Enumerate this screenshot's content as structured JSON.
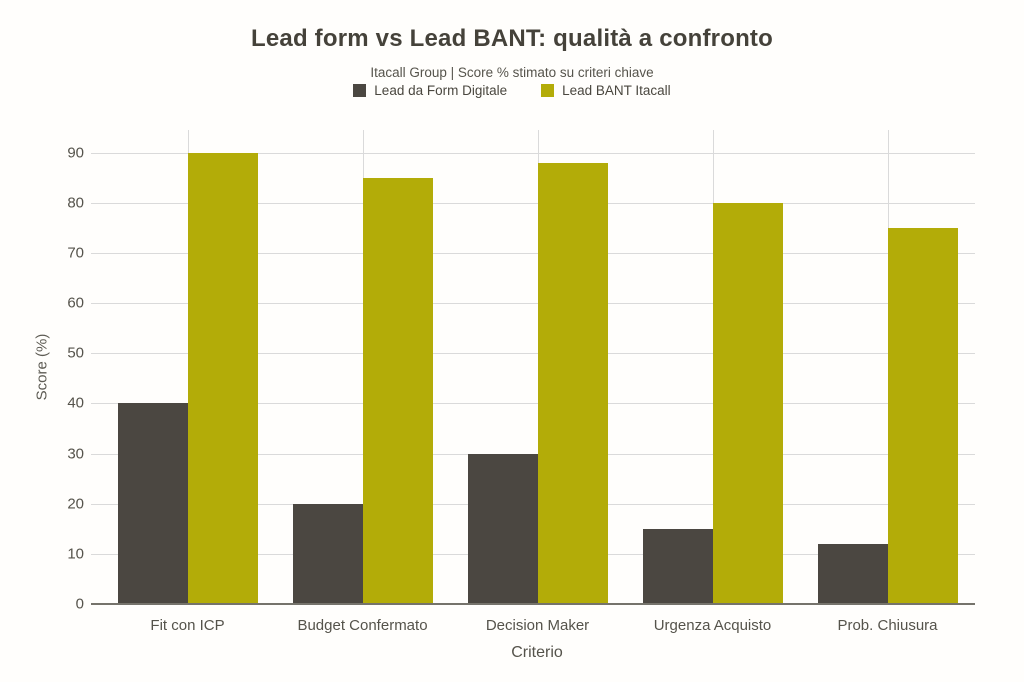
{
  "page": {
    "background": "#fffefc"
  },
  "chart_data": {
    "type": "bar",
    "title": "Lead form vs Lead BANT: qualità a confronto",
    "subtitle": "Itacall Group | Score % stimato su criteri chiave",
    "xlabel": "Criterio",
    "ylabel": "Score (%)",
    "categories": [
      "Fit con ICP",
      "Budget Confermato",
      "Decision Maker",
      "Urgenza Acquisto",
      "Prob. Chiusura"
    ],
    "series": [
      {
        "name": "Lead da Form Digitale",
        "color": "#4b4741",
        "values": [
          40,
          20,
          30,
          15,
          12
        ]
      },
      {
        "name": "Lead BANT Itacall",
        "color": "#b3ac08",
        "values": [
          90,
          85,
          88,
          80,
          75
        ]
      }
    ],
    "yticks": [
      0,
      10,
      20,
      30,
      40,
      50,
      60,
      70,
      80,
      90
    ],
    "ylim": [
      0,
      94.5
    ],
    "legend_position": "top",
    "grid": {
      "horizontal": true,
      "vertical_at_category_centers": true
    },
    "colors": {
      "grid": "#dadada",
      "axis_line": "#75736b",
      "title": "#45423a",
      "subtitle": "#56544c",
      "tick_label": "#55534b"
    }
  }
}
